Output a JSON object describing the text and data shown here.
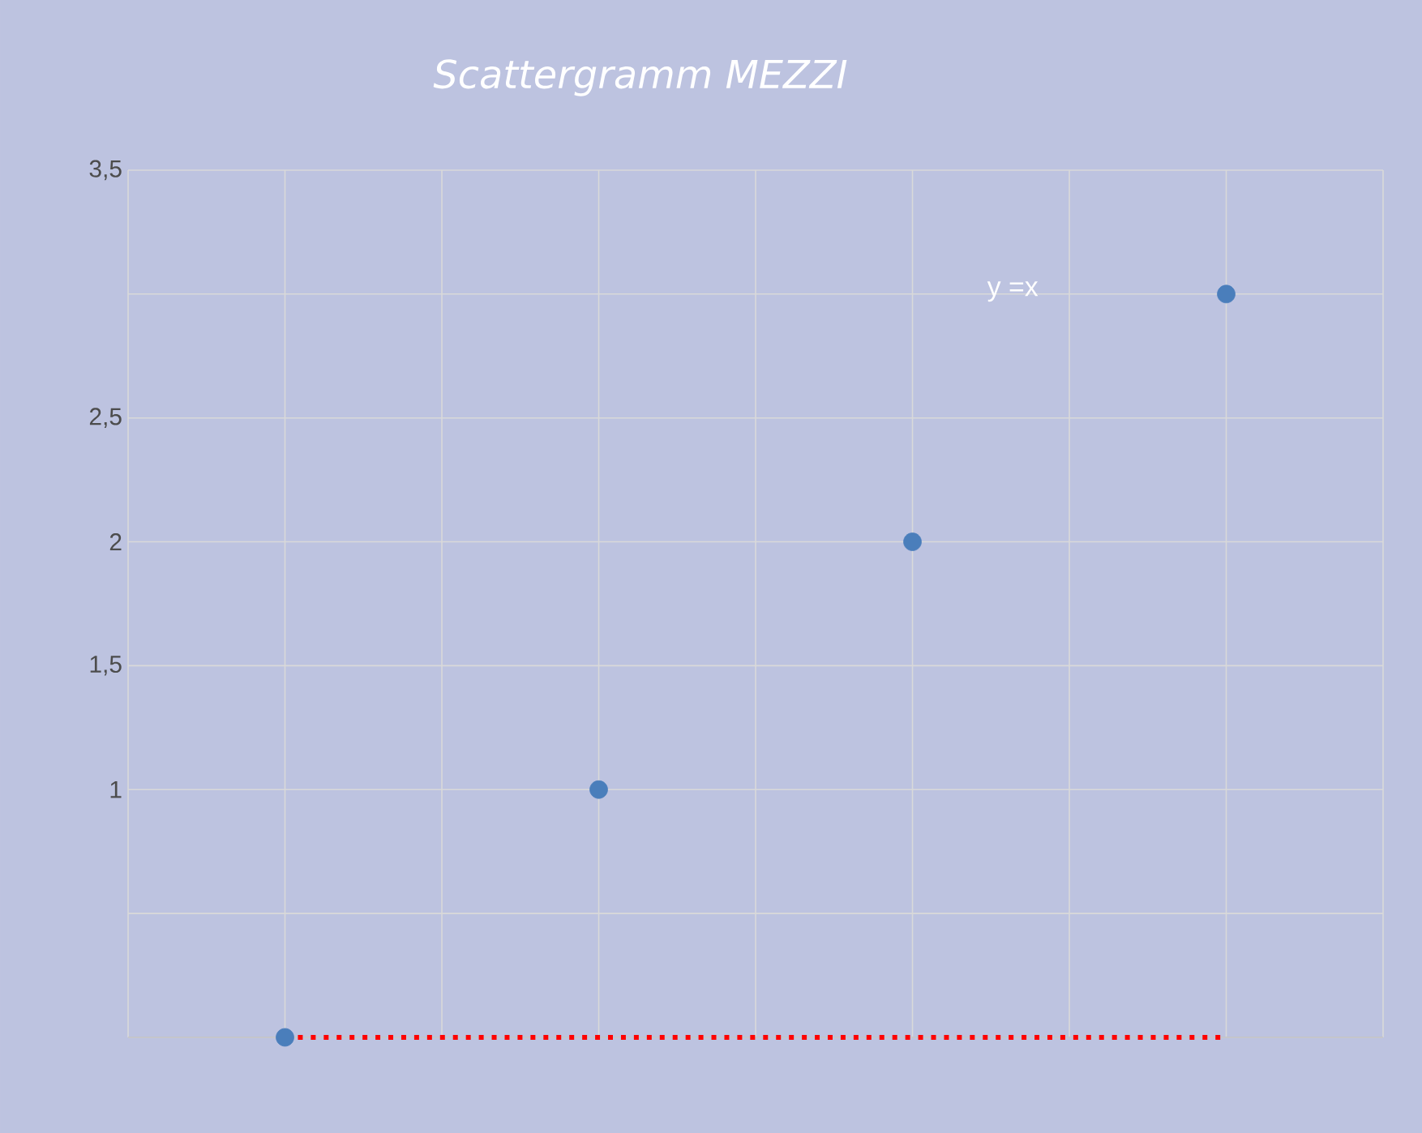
{
  "chart_data": {
    "type": "scatter",
    "title": "Scattergramm MEZZI",
    "categories": [
      null,
      null,
      null,
      null
    ],
    "series": [
      {
        "color": "#4a7ebb",
        "values": [
          0,
          1,
          2,
          3
        ],
        "marker": "circle"
      },
      {
        "type": "line",
        "color": "#ff0000",
        "values": [
          0,
          0,
          0,
          0
        ],
        "line_style": "dotted",
        "marker": "none"
      }
    ],
    "ylim": [
      0,
      3.5
    ],
    "yticks": [
      {
        "value": 0,
        "label": null
      },
      {
        "value": 0.5,
        "label": null
      },
      {
        "value": 1,
        "label": "1"
      },
      {
        "value": 1.5,
        "label": "1,5"
      },
      {
        "value": 2,
        "label": "2"
      },
      {
        "value": 2.5,
        "label": "2,5"
      },
      {
        "value": 3,
        "label": null
      },
      {
        "value": 3.5,
        "label": "3,5"
      }
    ],
    "tick_labels": "y",
    "grid": true,
    "annotations": [
      "y =x"
    ]
  }
}
